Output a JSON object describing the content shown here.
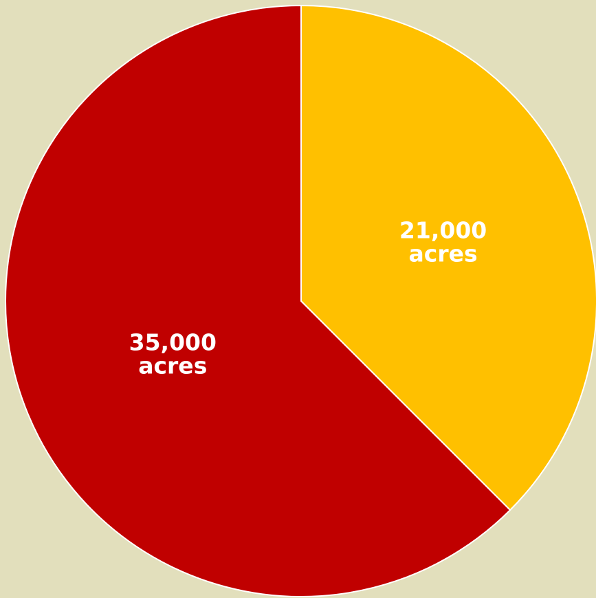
{
  "chart_data": {
    "type": "pie",
    "title": "",
    "slices": [
      {
        "label_line1": "21,000",
        "label_line2": "acres",
        "value": 21000,
        "color": "#ffc000"
      },
      {
        "label_line1": "35,000",
        "label_line2": "acres",
        "value": 35000,
        "color": "#c00000"
      }
    ],
    "start_angle_deg": 0,
    "direction": "clockwise",
    "slice_border_color": "#ffffff",
    "background_color": "#e2dfbc"
  }
}
